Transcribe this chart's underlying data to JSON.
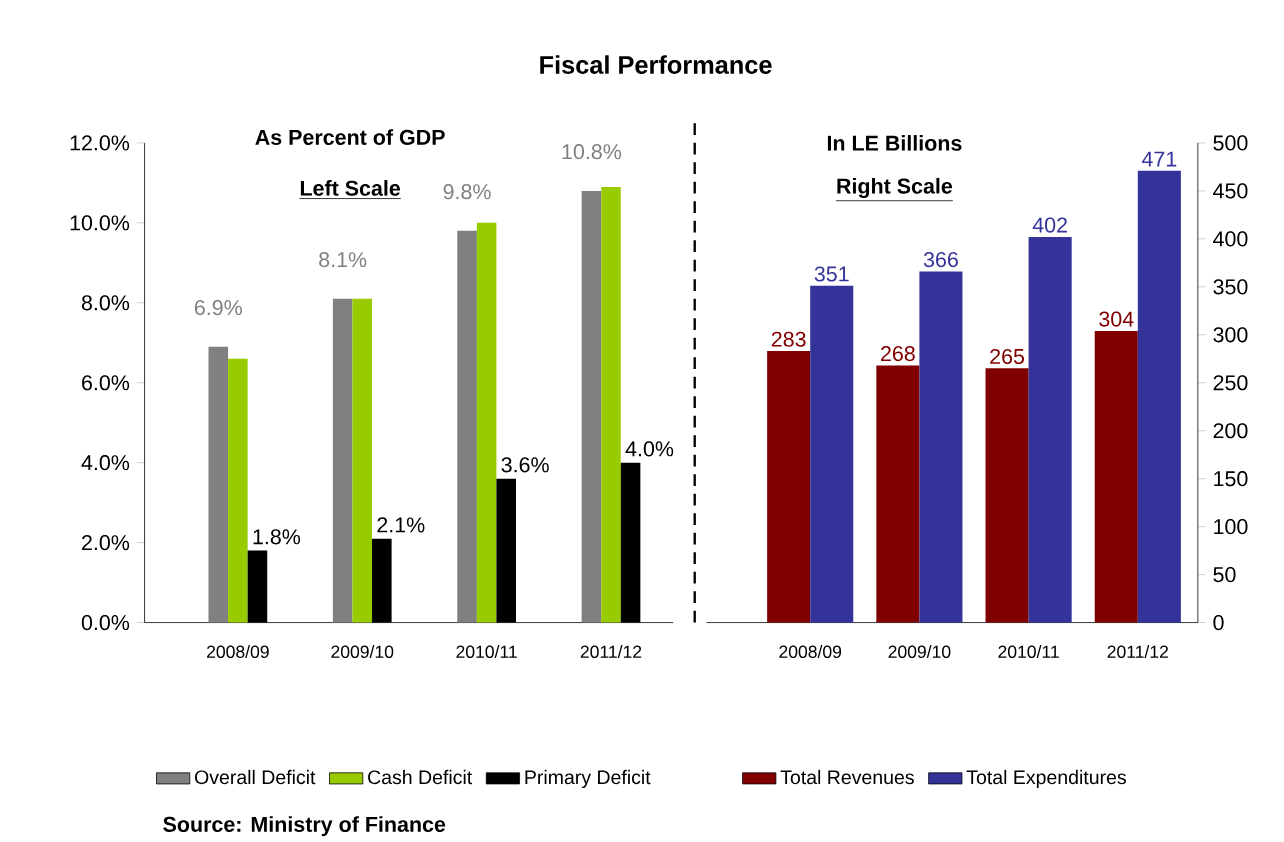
{
  "chart_data": [
    {
      "type": "bar",
      "title": "Fiscal Performance",
      "annotations": [
        "As Percent of GDP",
        "Left Scale",
        "Source: Ministry of Finance"
      ],
      "categories": [
        "2008/09",
        "2009/10",
        "2010/11",
        "2011/12"
      ],
      "series": [
        {
          "name": "Overall Deficit",
          "color": "#808080",
          "values": [
            6.9,
            8.1,
            9.8,
            10.8
          ],
          "value_labels": [
            "6.9%",
            "8.1%",
            "9.8%",
            "10.8%"
          ]
        },
        {
          "name": "Cash Deficit",
          "color": "#99cc00",
          "values": [
            6.6,
            8.1,
            10.0,
            10.9
          ]
        },
        {
          "name": "Primary Deficit",
          "color": "#000000",
          "values": [
            1.8,
            2.1,
            3.6,
            4.0
          ],
          "value_labels": [
            "1.8%",
            "2.1%",
            "3.6%",
            "4.0%"
          ]
        }
      ],
      "ylim": [
        0,
        12
      ],
      "yticks": [
        {
          "value": 0,
          "label": "0.0%"
        },
        {
          "value": 2,
          "label": "2.0%"
        },
        {
          "value": 4,
          "label": "4.0%"
        },
        {
          "value": 6,
          "label": "6.0%"
        },
        {
          "value": 8,
          "label": "8.0%"
        },
        {
          "value": 10,
          "label": "10.0%"
        },
        {
          "value": 12,
          "label": "12.0%"
        }
      ],
      "legend": "bottom"
    },
    {
      "type": "bar",
      "annotations": [
        "In LE Billions",
        "Right Scale"
      ],
      "categories": [
        "2008/09",
        "2009/10",
        "2010/11",
        "2011/12"
      ],
      "series": [
        {
          "name": "Total Revenues",
          "color": "#800000",
          "axis": "y2",
          "values": [
            283,
            268,
            265,
            304
          ],
          "value_labels": [
            "283",
            "268",
            "265",
            "304"
          ]
        },
        {
          "name": "Total Expenditures",
          "color": "#333399",
          "axis": "y2",
          "values": [
            351,
            366,
            402,
            471
          ],
          "value_labels": [
            "351",
            "366",
            "402",
            "471"
          ]
        }
      ],
      "y2lim": [
        0,
        500
      ],
      "y2ticks": [
        0,
        50,
        100,
        150,
        200,
        250,
        300,
        350,
        400,
        450,
        500
      ],
      "legend": "bottom"
    }
  ]
}
